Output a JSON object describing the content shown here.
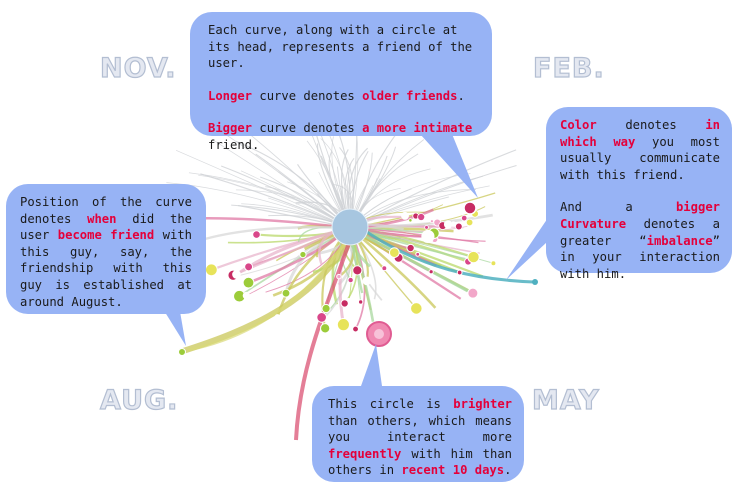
{
  "months": {
    "nov": "NOV.",
    "feb": "FEB.",
    "aug": "AUG.",
    "may": "MAY"
  },
  "callouts": {
    "top": {
      "line1": "Each curve, along with a circle at its head, represents a friend of the user.",
      "p2_a": "Longer",
      "p2_b": " curve denotes ",
      "p2_c": "older friends",
      "p2_d": ".",
      "p3_a": "Bigger",
      "p3_b": " curve denotes ",
      "p3_c": "a more intimate",
      "p3_d": " friend."
    },
    "right": {
      "p1_a": "Color",
      "p1_b": " denotes ",
      "p1_c": "in which way",
      "p1_d": " you most usually communicate with this friend.",
      "p2_a": "And a ",
      "p2_b": "bigger Curvature",
      "p2_c": " denotes a greater “",
      "p2_d": "imbalance",
      "p2_e": "” in your interaction with him."
    },
    "left": {
      "a": "Position of the curve denotes ",
      "b": "when",
      "c": " did the user ",
      "d": "become friend",
      "e": " with this guy, say, the friendship with this guy is established at around August."
    },
    "bottom": {
      "a": "This circle is ",
      "b": "brighter",
      "c": " than others, which means you interact more ",
      "d": "frequently",
      "e": " with him than others in ",
      "f": "recent 10 days",
      "g": "."
    }
  },
  "colors": {
    "bubble": "#97b3f5",
    "highlight": "#e4003a",
    "center_node": "#a7c6e0",
    "friend_heads": [
      "#c72c63",
      "#d9478a",
      "#9ccc3a",
      "#e7e35a",
      "#f2a7c9",
      "#ffffff"
    ]
  }
}
